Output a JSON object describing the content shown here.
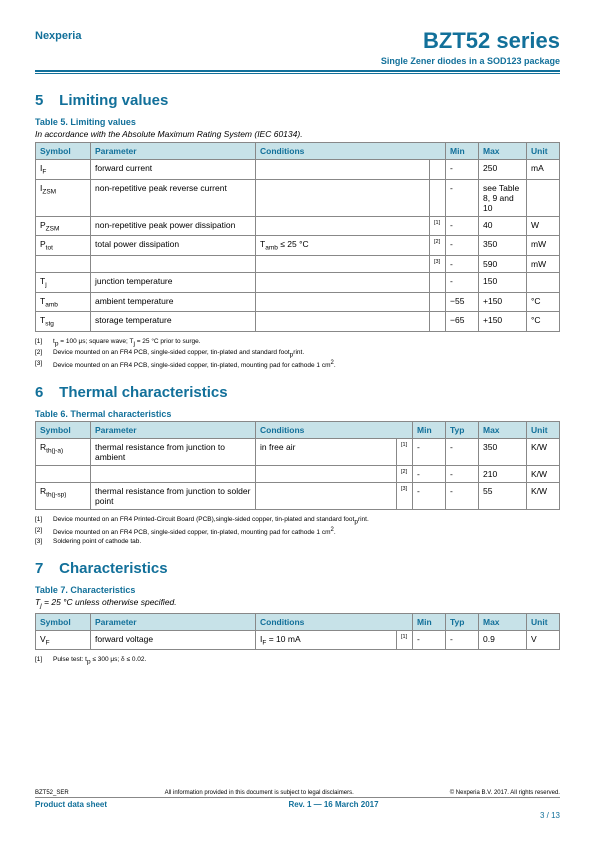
{
  "header": {
    "company": "Nexperia",
    "product": "BZT52 series",
    "subtitle": "Single Zener diodes in a SOD123 package"
  },
  "section5": {
    "num": "5",
    "title": "Limiting values",
    "caption": "Table 5. Limiting values",
    "note": "In accordance with the Absolute Maximum Rating System (IEC 60134).",
    "headers": {
      "symbol": "Symbol",
      "param": "Parameter",
      "cond": "Conditions",
      "min": "Min",
      "max": "Max",
      "unit": "Unit"
    },
    "rows": [
      {
        "sym": "I",
        "sub": "F",
        "param": "forward current",
        "cond": "",
        "ref": "",
        "min": "-",
        "max": "250",
        "unit": "mA"
      },
      {
        "sym": "I",
        "sub": "ZSM",
        "param": "non-repetitive peak reverse current",
        "cond": "",
        "ref": "",
        "min": "-",
        "max": "see Table 8, 9 and 10",
        "unit": ""
      },
      {
        "sym": "P",
        "sub": "ZSM",
        "param": "non-repetitive peak power dissipation",
        "cond": "",
        "ref": "[1]",
        "min": "-",
        "max": "40",
        "unit": "W"
      },
      {
        "sym": "P",
        "sub": "tot",
        "param": "total power dissipation",
        "cond": "Tamb ≤ 25 °C",
        "ref": "[2]",
        "min": "-",
        "max": "350",
        "unit": "mW"
      },
      {
        "sym": "",
        "sub": "",
        "param": "",
        "cond": "",
        "ref": "[3]",
        "min": "-",
        "max": "590",
        "unit": "mW"
      },
      {
        "sym": "T",
        "sub": "j",
        "param": "junction temperature",
        "cond": "",
        "ref": "",
        "min": "-",
        "max": "150",
        "unit": ""
      },
      {
        "sym": "T",
        "sub": "amb",
        "param": "ambient temperature",
        "cond": "",
        "ref": "",
        "min": "−55",
        "max": "+150",
        "unit": "°C"
      },
      {
        "sym": "T",
        "sub": "stg",
        "param": "storage temperature",
        "cond": "",
        "ref": "",
        "min": "−65",
        "max": "+150",
        "unit": "°C"
      }
    ],
    "footnotes": [
      {
        "n": "[1]",
        "t": "tp = 100 μs; square wave; Tj = 25 °C prior to surge."
      },
      {
        "n": "[2]",
        "t": "Device mounted on an FR4 PCB, single-sided copper, tin-plated and standard footprint."
      },
      {
        "n": "[3]",
        "t": "Device mounted on an FR4 PCB, single-sided copper, tin-plated, mounting pad for cathode 1 cm²."
      }
    ]
  },
  "section6": {
    "num": "6",
    "title": "Thermal characteristics",
    "caption": "Table 6. Thermal characteristics",
    "headers": {
      "symbol": "Symbol",
      "param": "Parameter",
      "cond": "Conditions",
      "min": "Min",
      "typ": "Typ",
      "max": "Max",
      "unit": "Unit"
    },
    "rows": [
      {
        "sym": "R",
        "sub": "th(j-a)",
        "param": "thermal resistance from junction to ambient",
        "cond": "in free air",
        "ref": "[1]",
        "min": "-",
        "typ": "-",
        "max": "350",
        "unit": "K/W"
      },
      {
        "sym": "",
        "sub": "",
        "param": "",
        "cond": "",
        "ref": "[2]",
        "min": "-",
        "typ": "-",
        "max": "210",
        "unit": "K/W"
      },
      {
        "sym": "R",
        "sub": "th(j-sp)",
        "param": "thermal resistance from junction to solder point",
        "cond": "",
        "ref": "[3]",
        "min": "-",
        "typ": "-",
        "max": "55",
        "unit": "K/W"
      }
    ],
    "footnotes": [
      {
        "n": "[1]",
        "t": "Device mounted on an FR4 Printed-Circuit Board (PCB),single-sided copper, tin-plated and standard footprint."
      },
      {
        "n": "[2]",
        "t": "Device mounted on an FR4 PCB, single-sided copper, tin-plated, mounting pad for cathode 1 cm²."
      },
      {
        "n": "[3]",
        "t": "Soldering point of cathode tab."
      }
    ]
  },
  "section7": {
    "num": "7",
    "title": "Characteristics",
    "caption": "Table 7. Characteristics",
    "note": "Tj = 25 °C unless otherwise specified.",
    "headers": {
      "symbol": "Symbol",
      "param": "Parameter",
      "cond": "Conditions",
      "min": "Min",
      "typ": "Typ",
      "max": "Max",
      "unit": "Unit"
    },
    "rows": [
      {
        "sym": "V",
        "sub": "F",
        "param": "forward voltage",
        "cond": "IF = 10 mA",
        "ref": "[1]",
        "min": "-",
        "typ": "-",
        "max": "0.9",
        "unit": "V"
      }
    ],
    "footnotes": [
      {
        "n": "[1]",
        "t": "Pulse test: tp ≤ 300 μs; δ ≤ 0.02."
      }
    ]
  },
  "footer": {
    "doccode": "BZT52_SER",
    "disclaimer": "All information provided in this document is subject to legal disclaimers.",
    "copyright": "© Nexperia B.V. 2017. All rights reserved.",
    "doctype": "Product data sheet",
    "revision": "Rev. 1 — 16 March 2017",
    "page": "3 / 13"
  }
}
